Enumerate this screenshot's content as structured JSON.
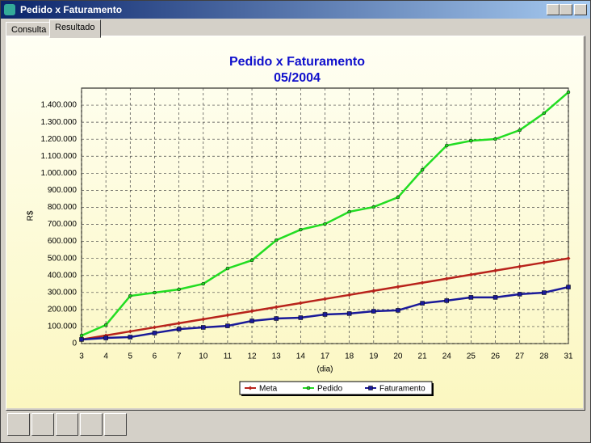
{
  "window": {
    "title": "Pedido x Faturamento"
  },
  "tabs": [
    "Consulta",
    "Resultado"
  ],
  "chart_data": {
    "type": "line",
    "title": "Pedido x Faturamento",
    "subtitle": "05/2004",
    "x_label": "(dia)",
    "y_label": "R$",
    "categories": [
      "3",
      "4",
      "5",
      "6",
      "7",
      "10",
      "11",
      "12",
      "13",
      "14",
      "17",
      "18",
      "19",
      "20",
      "21",
      "24",
      "25",
      "26",
      "27",
      "28",
      "31"
    ],
    "series": [
      {
        "name": "Meta",
        "color": "#b8231b",
        "marker": "diamond",
        "values": [
          23810,
          47620,
          71430,
          95240,
          119050,
          142860,
          166670,
          190480,
          214290,
          238100,
          261900,
          285710,
          309520,
          333330,
          357140,
          380950,
          404760,
          428570,
          452380,
          476190,
          500000
        ]
      },
      {
        "name": "Pedido",
        "color": "#22dd22",
        "marker": "circle",
        "values": [
          47000,
          109000,
          280000,
          299000,
          318000,
          351000,
          441000,
          489000,
          607000,
          669000,
          702000,
          774000,
          802000,
          859000,
          1020000,
          1163000,
          1191000,
          1201000,
          1253000,
          1353000,
          1476000
        ]
      },
      {
        "name": "Faturamento",
        "color": "#1a1a99",
        "marker": "square",
        "values": [
          24000,
          33000,
          38000,
          62000,
          85000,
          95000,
          104000,
          133000,
          147000,
          152000,
          171000,
          176000,
          190000,
          195000,
          237000,
          252000,
          271000,
          271000,
          290000,
          299000,
          332000
        ]
      }
    ],
    "ylim": [
      0,
      1500000
    ],
    "yticks": [
      0,
      {
        "value": 100000,
        "label": "100.000"
      },
      {
        "value": 200000,
        "label": "200.000"
      },
      {
        "value": 300000,
        "label": "300.000"
      },
      {
        "value": 400000,
        "label": "400.000"
      },
      {
        "value": 500000,
        "label": "500.000"
      },
      {
        "value": 600000,
        "label": "600.000"
      },
      {
        "value": 700000,
        "label": "700.000"
      },
      {
        "value": 800000,
        "label": "800.000"
      },
      {
        "value": 900000,
        "label": "900.000"
      },
      {
        "value": 1000000,
        "label": "1.000.000"
      },
      {
        "value": 1100000,
        "label": "1.100.000"
      },
      {
        "value": 1200000,
        "label": "1.200.000"
      },
      {
        "value": 1300000,
        "label": "1.300.000"
      },
      {
        "value": 1400000,
        "label": "1.400.000"
      }
    ],
    "grid": true,
    "legend": "bottom"
  }
}
